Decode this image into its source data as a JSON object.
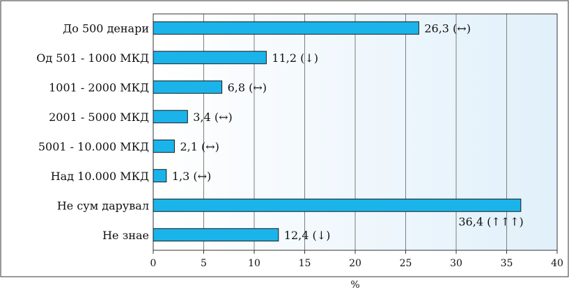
{
  "chart_data": {
    "type": "bar",
    "orientation": "horizontal",
    "categories": [
      "До 500 денари",
      "Од 501 - 1000 МКД",
      "1001 - 2000 МКД",
      "2001 - 5000 МКД",
      "5001 - 10.000 МКД",
      "Над 10.000 МКД",
      "Не сум дарувал",
      "Не знае"
    ],
    "values": [
      26.3,
      11.2,
      6.8,
      3.4,
      2.1,
      1.3,
      36.4,
      12.4
    ],
    "value_labels": [
      "26,3 (↔)",
      "11,2 (↓)",
      "6,8 (↔)",
      "3,4 (↔)",
      "2,1 (↔)",
      "1,3 (↔)",
      "36,4 (↑↑↑)",
      "12,4 (↓)"
    ],
    "xlabel": "%",
    "xlim": [
      0,
      40
    ],
    "xticks": [
      0,
      5,
      10,
      15,
      20,
      25,
      30,
      35,
      40
    ],
    "grid": true,
    "colors": {
      "bar_fill": "#1ab4ea",
      "bar_stroke": "#1a1a1a",
      "plot_bg_light": "#e1f0fa",
      "grid": "#7d7d7d"
    }
  }
}
